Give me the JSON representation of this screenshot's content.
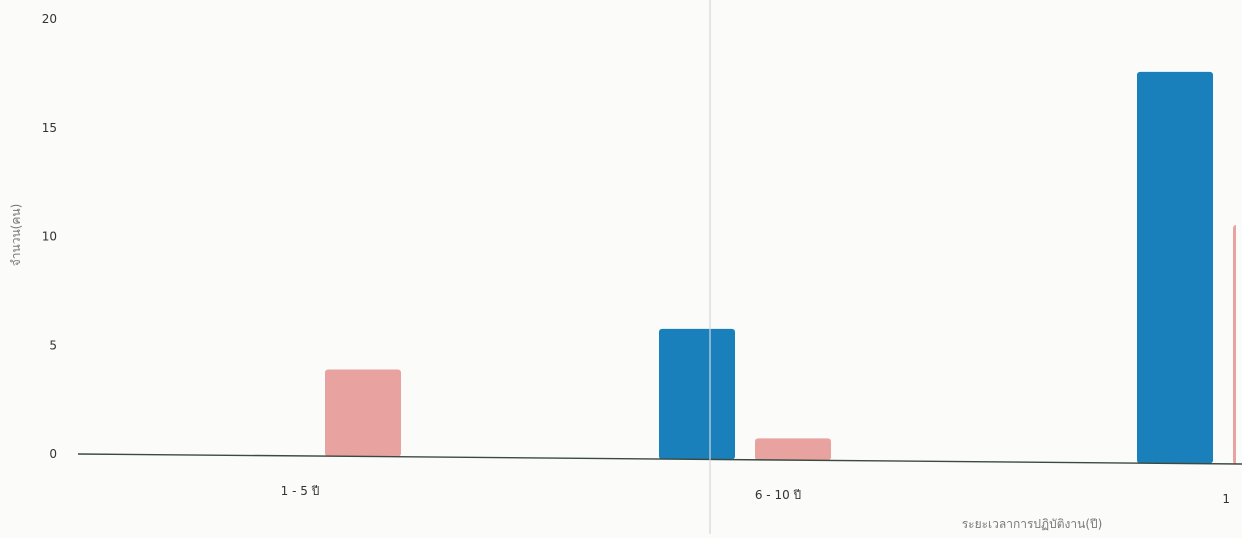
{
  "chart_data": {
    "type": "bar",
    "title": "",
    "xlabel": "ระยะเวลาการปฏิบัติงาน(ปี)",
    "ylabel": "จำนวน(คน)",
    "ylim": [
      0,
      20
    ],
    "y_ticks": [
      "0",
      "5",
      "10",
      "15",
      "20"
    ],
    "categories": [
      "1 - 5 ปี",
      "6 - 10 ปี",
      "1"
    ],
    "series": [
      {
        "values": [
          0,
          6,
          18
        ],
        "color": "#1a80bb"
      },
      {
        "values": [
          4,
          1,
          11
        ],
        "color": "#e8a3a0"
      }
    ],
    "grid": false,
    "legend": "none"
  }
}
